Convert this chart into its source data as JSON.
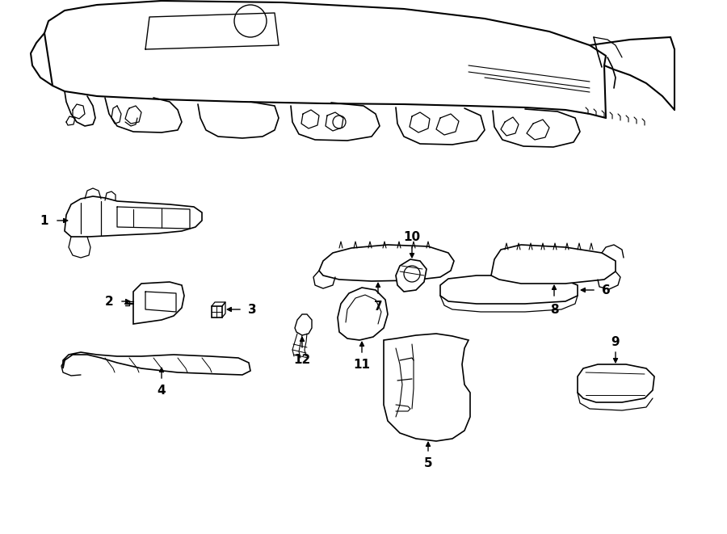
{
  "title": "",
  "background_color": "#ffffff",
  "line_color": "#000000",
  "fig_width": 9.0,
  "fig_height": 6.61,
  "dpi": 100
}
